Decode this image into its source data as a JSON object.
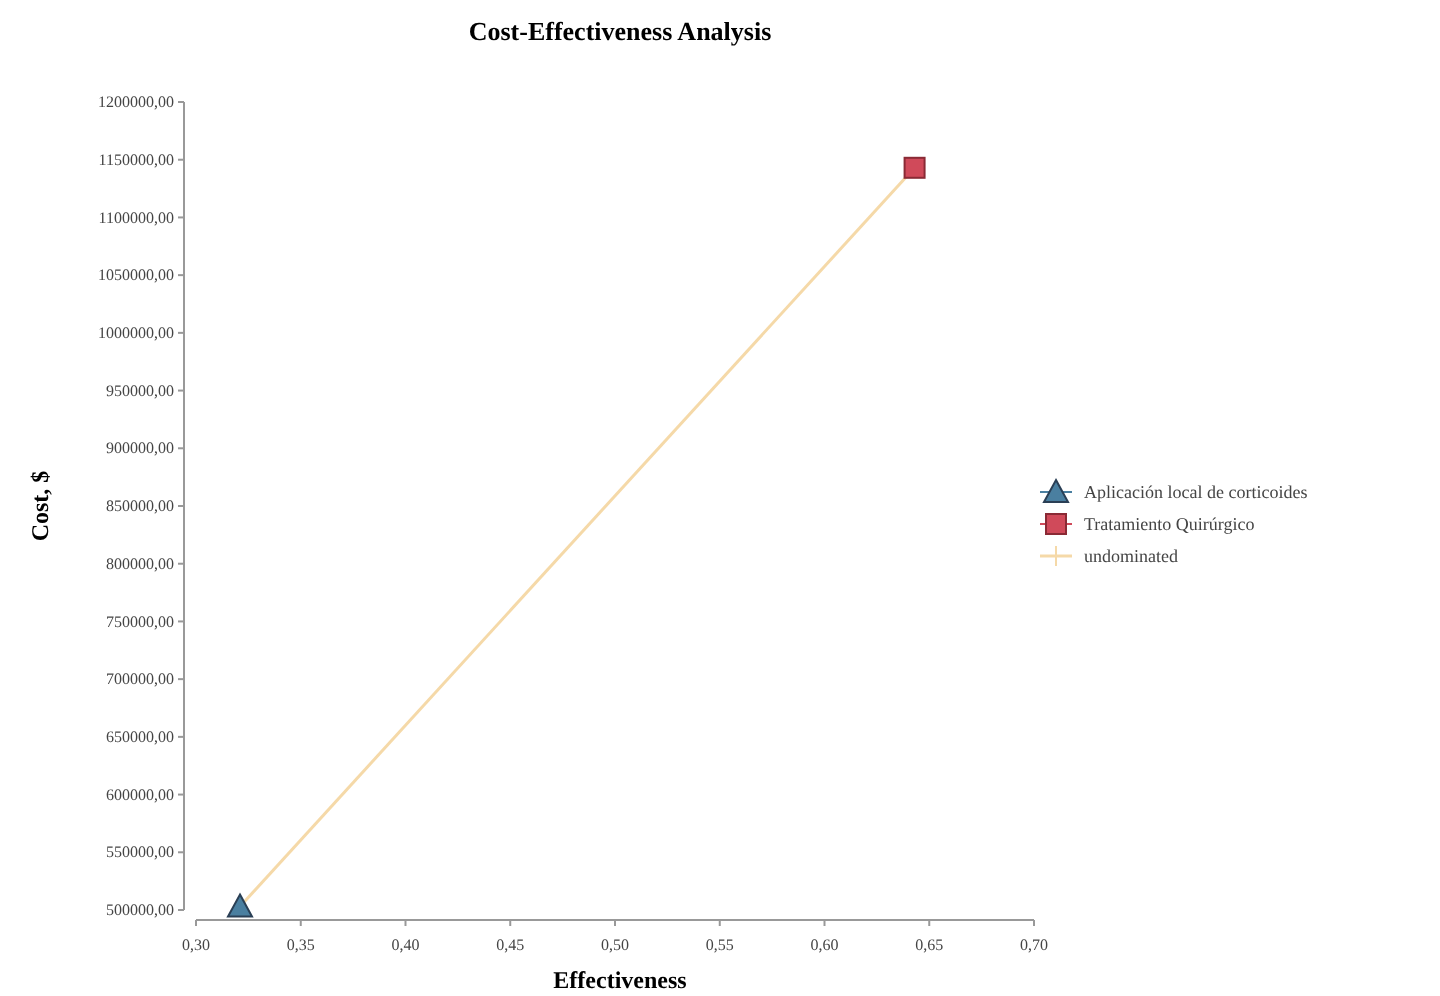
{
  "chart_data": {
    "type": "scatter",
    "title": "Cost-Effectiveness Analysis",
    "xlabel": "Effectiveness",
    "ylabel": "Cost, $",
    "xlim": [
      0.3,
      0.7
    ],
    "xticks": [
      {
        "value": 0.3,
        "label": "0,30"
      },
      {
        "value": 0.35,
        "label": "0,35"
      },
      {
        "value": 0.4,
        "label": "0,40"
      },
      {
        "value": 0.45,
        "label": "0,45"
      },
      {
        "value": 0.5,
        "label": "0,50"
      },
      {
        "value": 0.55,
        "label": "0,55"
      },
      {
        "value": 0.6,
        "label": "0,60"
      },
      {
        "value": 0.65,
        "label": "0,65"
      },
      {
        "value": 0.7,
        "label": "0,70"
      }
    ],
    "ylim": [
      500000,
      1200000
    ],
    "yticks": [
      {
        "value": 500000,
        "label": "500000,00"
      },
      {
        "value": 550000,
        "label": "550000,00"
      },
      {
        "value": 600000,
        "label": "600000,00"
      },
      {
        "value": 650000,
        "label": "650000,00"
      },
      {
        "value": 700000,
        "label": "700000,00"
      },
      {
        "value": 750000,
        "label": "750000,00"
      },
      {
        "value": 800000,
        "label": "800000,00"
      },
      {
        "value": 850000,
        "label": "850000,00"
      },
      {
        "value": 900000,
        "label": "900000,00"
      },
      {
        "value": 950000,
        "label": "950000,00"
      },
      {
        "value": 1000000,
        "label": "1000000,00"
      },
      {
        "value": 1050000,
        "label": "1050000,00"
      },
      {
        "value": 1100000,
        "label": "1100000,00"
      },
      {
        "value": 1150000,
        "label": "1150000,00"
      },
      {
        "value": 1200000,
        "label": "1200000,00"
      }
    ],
    "legend": "right",
    "x": [
      0.321,
      0.643
    ],
    "series": [
      {
        "name": "undominated",
        "type": "line",
        "color": "#f5d9a8",
        "marker": "none",
        "values": [
          503000,
          1143000
        ]
      },
      {
        "name": "Aplicación local de corticoides",
        "color": "#4a7fa0",
        "marker": "triangle",
        "values": [
          503000,
          null
        ]
      },
      {
        "name": "Tratamiento Quirúrgico",
        "color": "#d04a5a",
        "marker": "square",
        "values": [
          null,
          1143000
        ]
      }
    ]
  }
}
